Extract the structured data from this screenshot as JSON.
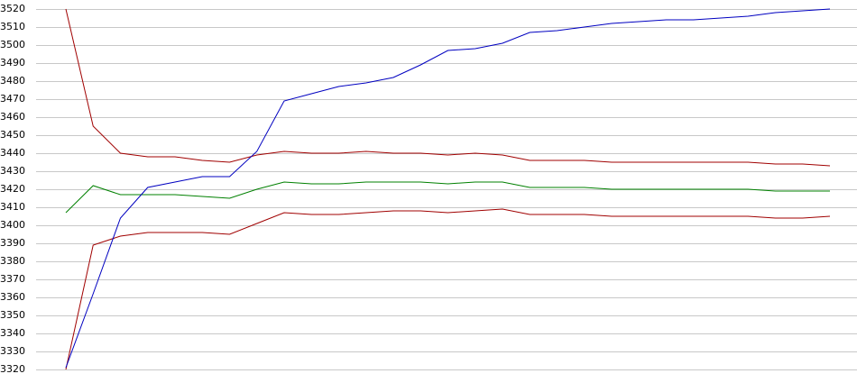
{
  "chart_data": {
    "type": "line",
    "categories": [
      null,
      null,
      null,
      null,
      null,
      null,
      null,
      null,
      null,
      null,
      null,
      null,
      null,
      null,
      null,
      null,
      null,
      null,
      null,
      null,
      null,
      null,
      null,
      null,
      null,
      null,
      null,
      null,
      null
    ],
    "series": [
      {
        "color": "#a00000",
        "values": [
          3520,
          3455,
          3440,
          3438,
          3438,
          3436,
          3435,
          3439,
          3441,
          3440,
          3440,
          3441,
          3440,
          3440,
          3439,
          3440,
          3439,
          3436,
          3436,
          3436,
          3435,
          3435,
          3435,
          3435,
          3435,
          3435,
          3434,
          3434,
          3433
        ]
      },
      {
        "color": "#008000",
        "values": [
          3407,
          3422,
          3417,
          3417,
          3417,
          3416,
          3415,
          3420,
          3424,
          3423,
          3423,
          3424,
          3424,
          3424,
          3423,
          3424,
          3424,
          3421,
          3421,
          3421,
          3420,
          3420,
          3420,
          3420,
          3420,
          3420,
          3419,
          3419,
          3419
        ]
      },
      {
        "color": "#a00000",
        "values": [
          3320,
          3389,
          3394,
          3396,
          3396,
          3396,
          3395,
          3401,
          3407,
          3406,
          3406,
          3407,
          3408,
          3408,
          3407,
          3408,
          3409,
          3406,
          3406,
          3406,
          3405,
          3405,
          3405,
          3405,
          3405,
          3405,
          3404,
          3404,
          3405
        ]
      },
      {
        "color": "#0000c0",
        "values": [
          3321,
          3362,
          3404,
          3421,
          3424,
          3427,
          3427,
          3441,
          3469,
          3473,
          3477,
          3479,
          3482,
          3489,
          3497,
          3498,
          3501,
          3507,
          3508,
          3510,
          3512,
          3513,
          3514,
          3514,
          3515,
          3516,
          3518,
          3519,
          3520
        ]
      }
    ],
    "ylim": [
      3320,
      3520
    ],
    "yticks": [
      3320,
      3330,
      3340,
      3350,
      3360,
      3370,
      3380,
      3390,
      3400,
      3410,
      3420,
      3430,
      3440,
      3450,
      3460,
      3470,
      3480,
      3490,
      3500,
      3510,
      3520
    ],
    "grid": true
  }
}
